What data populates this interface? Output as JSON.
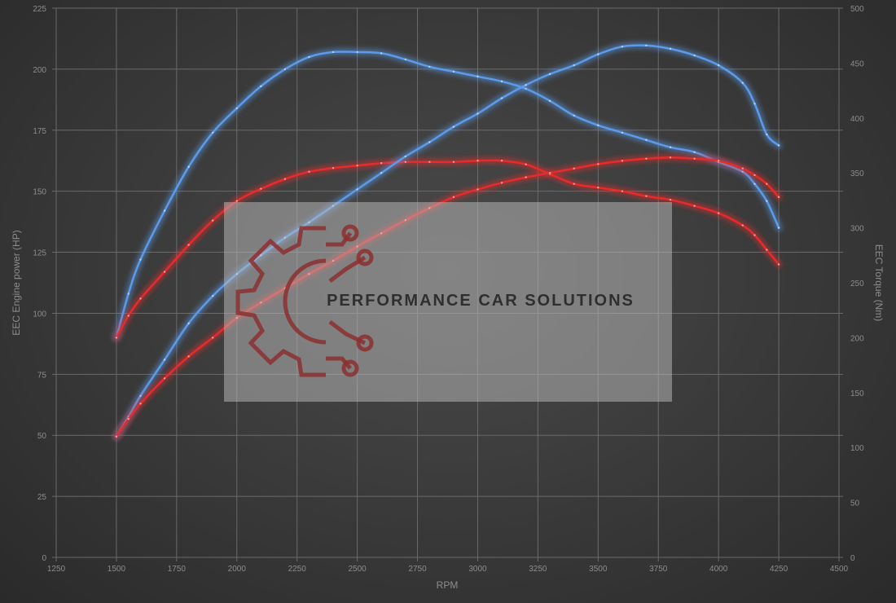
{
  "chart_data": {
    "type": "line",
    "title": "",
    "xlabel": "RPM",
    "ylabel_left": "EEC Engine power (HP)",
    "ylabel_right": "EEC Torque (Nm)",
    "xlim": [
      1250,
      4500
    ],
    "ylim_left": [
      0,
      225
    ],
    "ylim_right": [
      0,
      500
    ],
    "x_ticks": [
      1250,
      1500,
      1750,
      2000,
      2250,
      2500,
      2750,
      3000,
      3250,
      3500,
      3750,
      4000,
      4250,
      4500
    ],
    "y_left_ticks": [
      0,
      25,
      50,
      75,
      100,
      125,
      150,
      175,
      200,
      225
    ],
    "y_right_ticks": [
      0,
      50,
      100,
      150,
      200,
      250,
      300,
      350,
      400,
      450,
      500
    ],
    "grid": true,
    "colors": {
      "tuned": "#5b9bea",
      "stock": "#e82a2a"
    },
    "series": [
      {
        "key": "power_tuned",
        "color_key": "tuned",
        "axis": "left",
        "x": [
          1500,
          1550,
          1600,
          1700,
          1800,
          1900,
          2000,
          2100,
          2200,
          2300,
          2400,
          2500,
          2600,
          2700,
          2800,
          2900,
          3000,
          3100,
          3200,
          3300,
          3400,
          3500,
          3600,
          3700,
          3800,
          3900,
          4000,
          4100,
          4150,
          4200,
          4250
        ],
        "y": [
          90,
          108,
          122,
          142,
          160,
          174,
          184,
          193,
          200,
          205,
          207,
          207,
          206.5,
          204,
          201,
          199,
          197,
          195,
          192,
          187,
          181,
          177,
          174,
          171,
          168,
          166,
          162,
          158,
          153,
          146,
          135
        ]
      },
      {
        "key": "power_stock",
        "color_key": "stock",
        "axis": "left",
        "x": [
          1500,
          1550,
          1600,
          1700,
          1800,
          1900,
          2000,
          2100,
          2200,
          2300,
          2400,
          2500,
          2600,
          2700,
          2800,
          2900,
          3000,
          3100,
          3200,
          3300,
          3400,
          3500,
          3600,
          3700,
          3800,
          3900,
          4000,
          4100,
          4150,
          4200,
          4250
        ],
        "y": [
          90,
          99,
          106,
          117,
          128,
          138,
          146,
          151,
          155,
          158,
          159.5,
          160.5,
          161.5,
          162,
          162,
          162,
          162.5,
          162.5,
          161,
          157,
          153,
          151.5,
          150,
          148,
          146.5,
          144,
          141,
          136,
          132,
          126,
          120
        ]
      },
      {
        "key": "torque_tuned",
        "color_key": "tuned",
        "axis": "right",
        "x": [
          1500,
          1550,
          1600,
          1700,
          1800,
          1900,
          2000,
          2100,
          2200,
          2300,
          2400,
          2500,
          2600,
          2700,
          2800,
          2900,
          3000,
          3100,
          3200,
          3300,
          3400,
          3500,
          3600,
          3700,
          3800,
          3900,
          4000,
          4100,
          4150,
          4200,
          4250
        ],
        "y": [
          110,
          128,
          147,
          180,
          213,
          238,
          258,
          275,
          291,
          305,
          320,
          335,
          350,
          365,
          378,
          392,
          404,
          418,
          430,
          440,
          448,
          458,
          465,
          466,
          463,
          457,
          448,
          432,
          413,
          385,
          375
        ]
      },
      {
        "key": "torque_stock",
        "color_key": "stock",
        "axis": "right",
        "x": [
          1500,
          1550,
          1600,
          1700,
          1800,
          1900,
          2000,
          2100,
          2200,
          2300,
          2400,
          2500,
          2600,
          2700,
          2800,
          2900,
          3000,
          3100,
          3200,
          3300,
          3400,
          3500,
          3600,
          3700,
          3800,
          3900,
          4000,
          4100,
          4150,
          4200,
          4250
        ],
        "y": [
          110,
          126,
          140,
          163,
          183,
          200,
          218,
          232,
          245,
          258,
          270,
          283,
          295,
          307,
          318,
          328,
          335,
          341,
          346,
          350,
          354,
          358,
          361,
          363,
          364,
          363,
          361,
          354,
          348,
          340,
          328
        ]
      }
    ]
  },
  "watermark": {
    "text": "PERFORMANCE CAR SOLUTIONS",
    "logo": "gear-circuit-logo"
  }
}
